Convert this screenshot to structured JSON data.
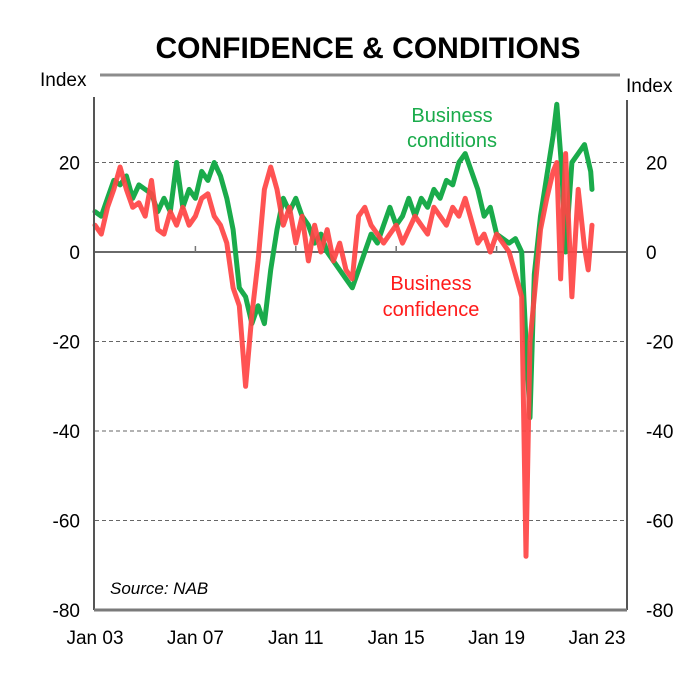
{
  "chart_data": {
    "type": "line",
    "title": "CONFIDENCE & CONDITIONS",
    "ylabel_left": "Index",
    "ylabel_right": "Index",
    "xlabel": "",
    "ylim": [
      -80,
      40
    ],
    "xlim": [
      2003.0,
      2023.0
    ],
    "yticks": [
      -80,
      -60,
      -40,
      -20,
      0,
      20
    ],
    "ytick_labels": [
      "-80",
      "-60",
      "-40",
      "-20",
      "0",
      "20"
    ],
    "xticks": [
      2003,
      2007,
      2011,
      2015,
      2019,
      2023
    ],
    "xtick_labels": [
      "Jan 03",
      "Jan 07",
      "Jan 11",
      "Jan 15",
      "Jan 19",
      "Jan 23"
    ],
    "grid": "horizontal dashed at each y tick",
    "legend": "inline annotations",
    "source": "Source: NAB",
    "series": [
      {
        "name": "Business conditions",
        "label_lines": [
          "Business",
          "conditions"
        ],
        "color": "#1aab4b",
        "x": [
          2003.0,
          2003.25,
          2003.5,
          2003.75,
          2004.0,
          2004.25,
          2004.5,
          2004.75,
          2005.0,
          2005.25,
          2005.5,
          2005.75,
          2006.0,
          2006.25,
          2006.5,
          2006.75,
          2007.0,
          2007.25,
          2007.5,
          2007.75,
          2008.0,
          2008.25,
          2008.5,
          2008.75,
          2009.0,
          2009.25,
          2009.5,
          2009.75,
          2010.0,
          2010.25,
          2010.5,
          2010.75,
          2011.0,
          2011.25,
          2011.5,
          2011.75,
          2012.0,
          2012.25,
          2012.5,
          2012.75,
          2013.0,
          2013.25,
          2013.5,
          2013.75,
          2014.0,
          2014.25,
          2014.5,
          2014.75,
          2015.0,
          2015.25,
          2015.5,
          2015.75,
          2016.0,
          2016.25,
          2016.5,
          2016.75,
          2017.0,
          2017.25,
          2017.5,
          2017.75,
          2018.0,
          2018.25,
          2018.5,
          2018.75,
          2019.0,
          2019.25,
          2019.5,
          2019.75,
          2020.0,
          2020.17,
          2020.33,
          2020.5,
          2020.75,
          2021.0,
          2021.25,
          2021.4,
          2021.6,
          2021.75,
          2022.0,
          2022.25,
          2022.5,
          2022.75,
          2022.8
        ],
        "values": [
          9,
          8,
          12,
          16,
          15,
          17,
          12,
          15,
          14,
          13,
          9,
          12,
          9,
          20,
          10,
          14,
          12,
          18,
          16,
          20,
          17,
          12,
          5,
          -8,
          -10,
          -16,
          -12,
          -16,
          -4,
          5,
          12,
          9,
          12,
          8,
          6,
          2,
          4,
          0,
          -2,
          -4,
          -6,
          -8,
          -4,
          0,
          4,
          2,
          6,
          10,
          6,
          8,
          12,
          8,
          12,
          10,
          14,
          12,
          16,
          15,
          20,
          22,
          18,
          14,
          8,
          10,
          4,
          3,
          2,
          3,
          0,
          -20,
          -37,
          -5,
          8,
          17,
          26,
          33,
          18,
          0,
          20,
          22,
          24,
          18,
          14
        ]
      },
      {
        "name": "Business confidence",
        "label_lines": [
          "Business",
          "confidence"
        ],
        "color": "#ff4444",
        "x": [
          2003.0,
          2003.25,
          2003.5,
          2003.75,
          2004.0,
          2004.25,
          2004.5,
          2004.75,
          2005.0,
          2005.25,
          2005.5,
          2005.75,
          2006.0,
          2006.25,
          2006.5,
          2006.75,
          2007.0,
          2007.25,
          2007.5,
          2007.75,
          2008.0,
          2008.25,
          2008.5,
          2008.75,
          2009.0,
          2009.25,
          2009.5,
          2009.75,
          2010.0,
          2010.25,
          2010.5,
          2010.75,
          2011.0,
          2011.25,
          2011.5,
          2011.75,
          2012.0,
          2012.25,
          2012.5,
          2012.75,
          2013.0,
          2013.25,
          2013.5,
          2013.75,
          2014.0,
          2014.25,
          2014.5,
          2014.75,
          2015.0,
          2015.25,
          2015.5,
          2015.75,
          2016.0,
          2016.25,
          2016.5,
          2016.75,
          2017.0,
          2017.25,
          2017.5,
          2017.75,
          2018.0,
          2018.25,
          2018.5,
          2018.75,
          2019.0,
          2019.25,
          2019.5,
          2019.75,
          2020.0,
          2020.17,
          2020.33,
          2020.5,
          2020.75,
          2021.0,
          2021.25,
          2021.4,
          2021.55,
          2021.75,
          2022.0,
          2022.25,
          2022.5,
          2022.65,
          2022.8
        ],
        "values": [
          6,
          4,
          10,
          14,
          19,
          14,
          10,
          11,
          8,
          16,
          5,
          4,
          9,
          6,
          10,
          6,
          8,
          12,
          13,
          8,
          6,
          2,
          -8,
          -12,
          -30,
          -14,
          -2,
          14,
          19,
          14,
          6,
          10,
          2,
          8,
          -2,
          6,
          0,
          5,
          -2,
          2,
          -4,
          -6,
          8,
          10,
          6,
          4,
          2,
          4,
          6,
          2,
          5,
          8,
          6,
          4,
          10,
          8,
          6,
          10,
          8,
          12,
          7,
          2,
          4,
          0,
          4,
          2,
          0,
          -5,
          -10,
          -68,
          -20,
          -10,
          5,
          12,
          18,
          20,
          -6,
          22,
          -10,
          14,
          1,
          -4,
          6
        ]
      }
    ]
  }
}
